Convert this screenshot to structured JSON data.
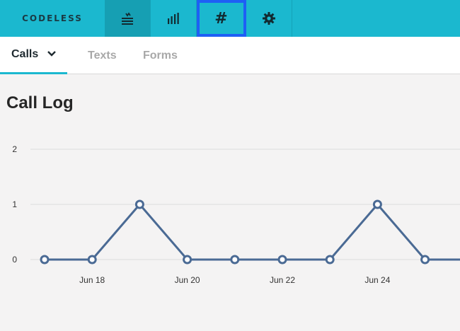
{
  "app": {
    "brand": "CODELESS"
  },
  "nav": {
    "items": [
      {
        "name": "feed-icon",
        "active": true
      },
      {
        "name": "bar-chart-icon",
        "active": false
      },
      {
        "name": "hash-icon",
        "label": "#",
        "active": false,
        "focused": true
      },
      {
        "name": "gear-icon",
        "active": false
      }
    ]
  },
  "tabs": [
    {
      "label": "Calls",
      "active": true
    },
    {
      "label": "Texts",
      "active": false
    },
    {
      "label": "Forms",
      "active": false
    }
  ],
  "page": {
    "title": "Call Log"
  },
  "colors": {
    "topbar": "#1bb8cf",
    "accent": "#1bb8cf",
    "line": "#4a6a94",
    "focus": "#1e5ff5"
  },
  "chart_data": {
    "type": "line",
    "title": "Call Log",
    "x": [
      "Jun 17",
      "Jun 18",
      "Jun 19",
      "Jun 20",
      "Jun 21",
      "Jun 22",
      "Jun 23",
      "Jun 24",
      "Jun 25",
      "Jun 26"
    ],
    "x_tick_labels": [
      "Jun 18",
      "Jun 20",
      "Jun 22",
      "Jun 24"
    ],
    "series": [
      {
        "values": [
          0,
          0,
          1,
          0,
          0,
          0,
          0,
          1,
          0,
          0
        ]
      }
    ],
    "y_ticks": [
      0,
      1,
      2
    ],
    "ylim": [
      0,
      2
    ],
    "grid": true,
    "legend": "none"
  }
}
